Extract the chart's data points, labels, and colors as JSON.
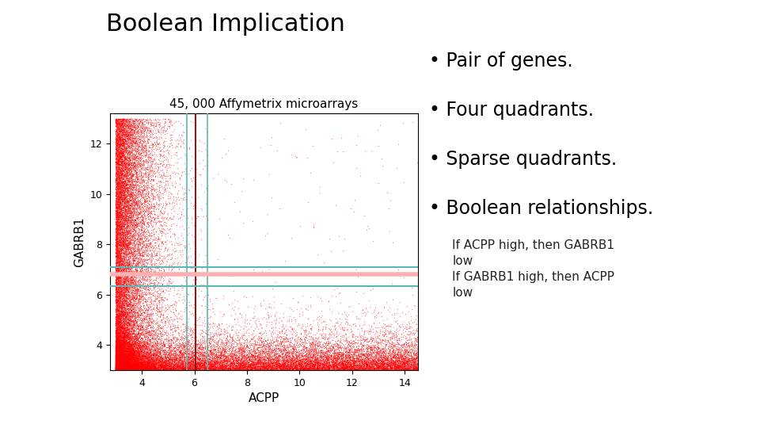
{
  "title": "Boolean Implication",
  "plot_title": "45, 000 Affymetrix microarrays",
  "xlabel": "ACPP",
  "ylabel": "GABRB1",
  "xlim": [
    2.8,
    14.5
  ],
  "ylim": [
    3.0,
    13.2
  ],
  "xticks": [
    4,
    6,
    8,
    10,
    12,
    14
  ],
  "yticks": [
    4,
    6,
    8,
    10,
    12
  ],
  "vlines": [
    {
      "x": 5.7,
      "color": "#5BB8B8",
      "lw": 1.2
    },
    {
      "x": 6.05,
      "color": "#8B1A1A",
      "lw": 1.5
    },
    {
      "x": 6.5,
      "color": "#5BB8B8",
      "lw": 1.2
    }
  ],
  "hlines": [
    {
      "y": 7.1,
      "color": "#5BB8B8",
      "lw": 1.5
    },
    {
      "y": 6.8,
      "color": "#FFB0B0",
      "lw": 4.0
    },
    {
      "y": 6.35,
      "color": "#5BB8B8",
      "lw": 1.5
    }
  ],
  "dot_color": "#FF0000",
  "dot_size": 1.0,
  "dot_alpha": 0.45,
  "n_points": 45000,
  "bullet_points": [
    "Pair of genes.",
    "Four quadrants.",
    "Sparse quadrants.",
    "Boolean relationships."
  ],
  "annotation_line1": "If ACPP high, then GABRB1",
  "annotation_line2": "low",
  "annotation_line3": "If GABRB1 high, then ACPP",
  "annotation_line4": "low",
  "bg_color": "#FFFFFF",
  "title_fontsize": 22,
  "plot_title_fontsize": 11,
  "bullet_fontsize": 17,
  "annotation_fontsize": 11,
  "axis_label_fontsize": 11,
  "tick_fontsize": 9
}
